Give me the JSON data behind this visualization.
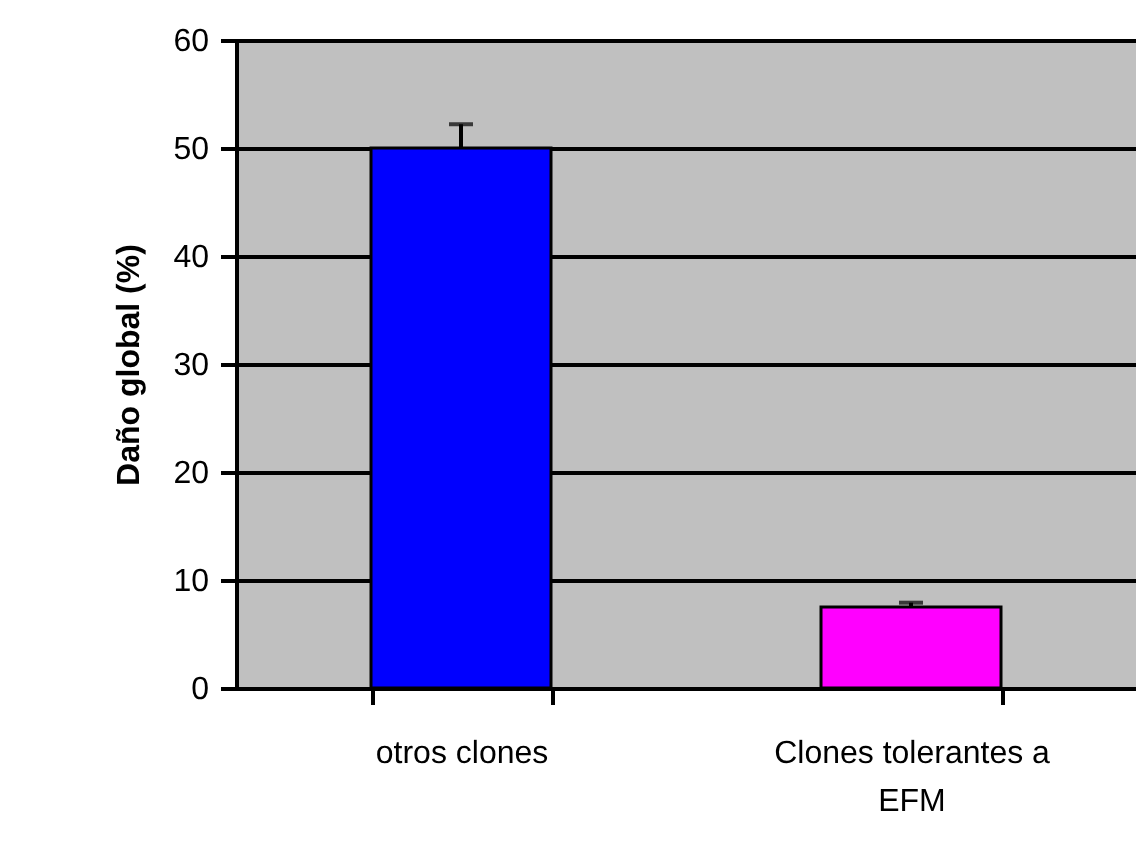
{
  "chart_data": {
    "type": "bar",
    "ylabel": "Daño global (%)",
    "categories": [
      "otros clones",
      "Clones tolerantes a EFM"
    ],
    "values": [
      50,
      7.5
    ],
    "colors": [
      "#0000ff",
      "#ff00ff"
    ],
    "errors": [
      [
        50,
        52.2
      ],
      [
        7.5,
        7.9
      ]
    ],
    "ylim": [
      0,
      60
    ],
    "yticks": [
      0,
      10,
      20,
      30,
      40,
      50,
      60
    ],
    "grid": "y"
  }
}
